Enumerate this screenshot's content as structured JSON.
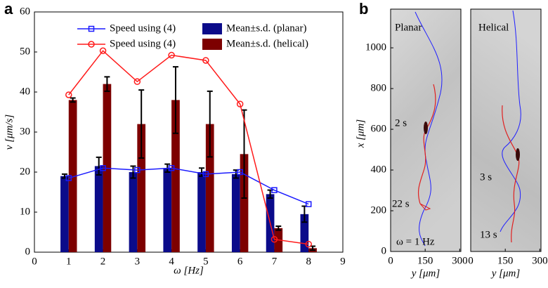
{
  "chart_data": [
    {
      "type": "bar_line",
      "panel": "a",
      "xlabel": "ω [Hz]",
      "ylabel": "v [μm/s]",
      "xlim": [
        0,
        9
      ],
      "xticks": [
        0,
        1,
        2,
        3,
        4,
        5,
        6,
        7,
        8,
        9
      ],
      "ylim": [
        0,
        60
      ],
      "yticks": [
        0,
        10,
        20,
        30,
        40,
        50,
        60
      ],
      "categories": [
        1,
        2,
        3,
        4,
        5,
        6,
        7,
        8
      ],
      "series": [
        {
          "name": "Speed using (4)",
          "kind": "line",
          "marker": "square",
          "color": "#1a1aff",
          "values": [
            18.5,
            21,
            20.5,
            21,
            19.5,
            20,
            15.5,
            12
          ]
        },
        {
          "name": "Speed using (4)",
          "kind": "line",
          "marker": "circle",
          "color": "#ff1a1a",
          "values": [
            39.3,
            50.3,
            42.6,
            49.2,
            47.9,
            37,
            3.2,
            2
          ]
        },
        {
          "name": "Mean±s.d. (planar)",
          "kind": "bar",
          "color": "#0b0b8a",
          "values": [
            19,
            21.5,
            20,
            21,
            20,
            19.5,
            14.5,
            9.5
          ],
          "errors": [
            0.5,
            2.2,
            1.5,
            1,
            1,
            1,
            1,
            2
          ]
        },
        {
          "name": "Mean±s.d. (helical)",
          "kind": "bar",
          "color": "#7d0000",
          "values": [
            38,
            42,
            32,
            38,
            32,
            24.5,
            6,
            1
          ],
          "errors": [
            0.5,
            1.8,
            8.5,
            8.3,
            8.2,
            11,
            0.5,
            0.5
          ]
        }
      ]
    },
    {
      "type": "image",
      "panel": "b",
      "xlabel": "y [μm]",
      "ylabel": "x [μm]",
      "xlim": [
        0,
        305
      ],
      "xticks": [
        0,
        150,
        300
      ],
      "ylim": [
        0,
        1190
      ],
      "yticks": [
        0,
        200,
        400,
        600,
        800,
        1000
      ],
      "annotations": [
        "Planar",
        "2 s",
        "22 s",
        "ω = 1 Hz"
      ]
    },
    {
      "type": "image",
      "xlabel": "y [μm]",
      "xlim": [
        0,
        305
      ],
      "xticks": [
        0,
        150,
        300
      ],
      "ylim": [
        0,
        1190
      ],
      "annotations": [
        "Helical",
        "3 s",
        "13 s"
      ]
    }
  ]
}
